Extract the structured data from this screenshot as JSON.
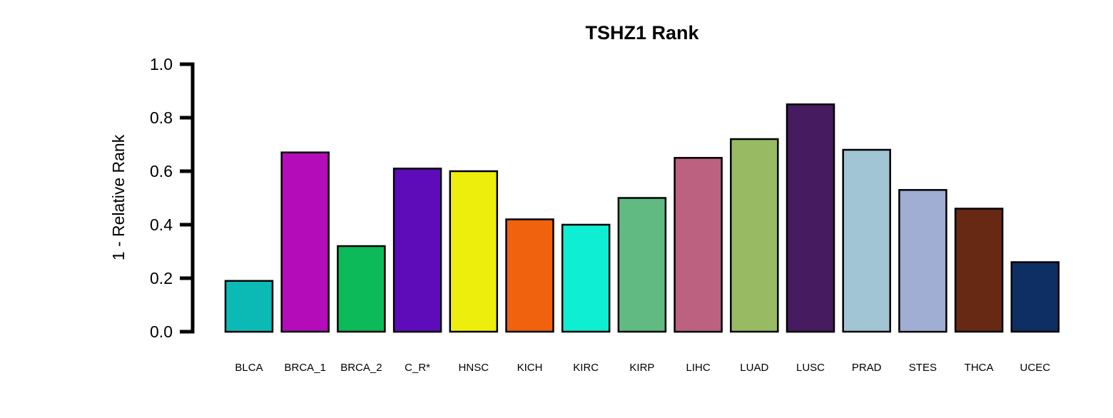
{
  "chart_data": {
    "type": "bar",
    "title": "TSHZ1 Rank",
    "xlabel": "",
    "ylabel": "1 - Relative Rank",
    "ylim": [
      0,
      1
    ],
    "yticks": [
      "0.0",
      "0.2",
      "0.4",
      "0.6",
      "0.8",
      "1.0"
    ],
    "grid": false,
    "categories": [
      "BLCA",
      "BRCA_1",
      "BRCA_2",
      "C_R*",
      "HNSC",
      "KICH",
      "KIRC",
      "KIRP",
      "LIHC",
      "LUAD",
      "LUSC",
      "PRAD",
      "STES",
      "THCA",
      "UCEC"
    ],
    "values": [
      0.19,
      0.67,
      0.32,
      0.61,
      0.6,
      0.42,
      0.4,
      0.5,
      0.65,
      0.72,
      0.85,
      0.68,
      0.53,
      0.46,
      0.26
    ],
    "colors": [
      "#0CBAB5",
      "#B50CBA",
      "#0CBA5A",
      "#5E0CBA",
      "#EEEE0C",
      "#F0620E",
      "#0EEED2",
      "#62BA83",
      "#BC6180",
      "#97BA62",
      "#461B5F",
      "#A1C5D4",
      "#A0AED4",
      "#672814",
      "#0E2F63"
    ]
  }
}
